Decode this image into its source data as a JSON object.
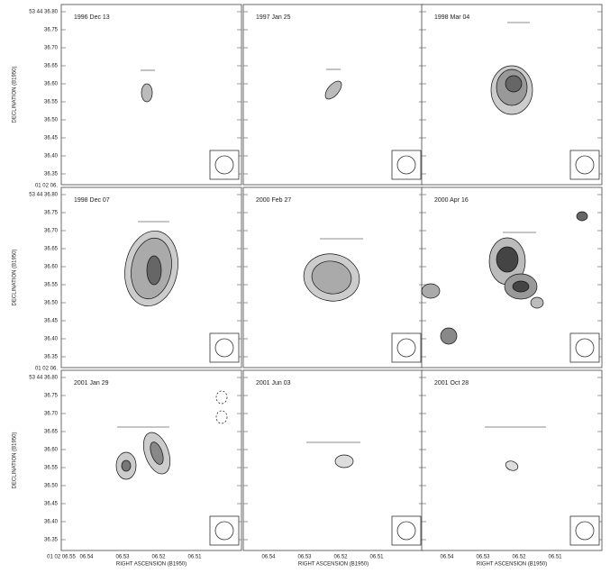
{
  "y_axis_label": "DECLINATION (B1950)",
  "x_axis_label": "RIGHT ASCENSION (B1950)",
  "y_ticks": [
    "53 44 36.80",
    "36.75",
    "36.70",
    "36.65",
    "36.60",
    "36.55",
    "36.50",
    "36.45",
    "36.40",
    "36.35"
  ],
  "row_break_label": "01 02 06.",
  "x_tick_first": "01 02 06.55",
  "x_ticks": [
    "06.54",
    "06.53",
    "06.52",
    "06.51"
  ],
  "panels": [
    {
      "title": "1996 Dec 13"
    },
    {
      "title": "1997 Jan 25"
    },
    {
      "title": "1998 Mar 04"
    },
    {
      "title": "1998 Dec 07"
    },
    {
      "title": "2000 Feb 27"
    },
    {
      "title": "2000 Apr 16"
    },
    {
      "title": "2001 Jan 29"
    },
    {
      "title": "2001 Jun 03"
    },
    {
      "title": "2001 Oct 28"
    }
  ]
}
